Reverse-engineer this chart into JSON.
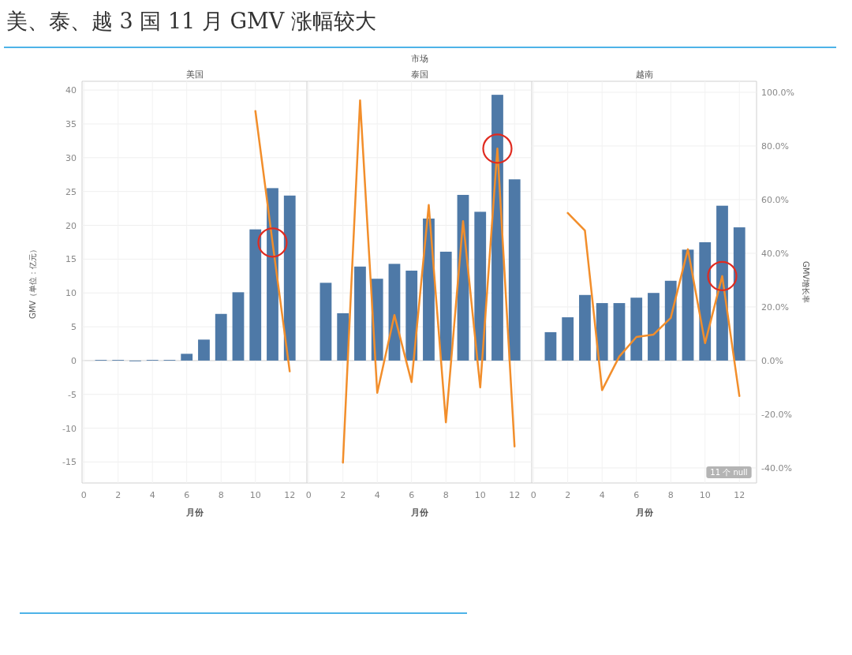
{
  "chart_data": [
    {
      "type": "bar",
      "title": "美国",
      "xlabel": "月份",
      "ylabel": "GMV（单位：亿元）",
      "annotations": [
        "美、泰、越 3 国 11 月 GMV 涨幅较大"
      ],
      "x": [
        1,
        2,
        3,
        4,
        5,
        6,
        7,
        8,
        9,
        10,
        11,
        12
      ],
      "xlim": [
        -0.1,
        13
      ],
      "xticks": [
        0,
        2,
        4,
        6,
        8,
        10,
        12
      ],
      "ylim": [
        -18.1,
        41.3
      ],
      "yticks": [
        -15,
        -10,
        -5,
        0,
        5,
        10,
        15,
        20,
        25,
        30,
        35,
        40
      ],
      "y2lim": [
        -45.6,
        104.1
      ],
      "grid": true,
      "series": [
        {
          "color": "#4e79a7",
          "values": [
            0.1,
            0.1,
            -0.1,
            0.1,
            0.1,
            1.0,
            3.1,
            6.9,
            10.1,
            19.4,
            25.5,
            24.4
          ]
        },
        {
          "type": "line",
          "axis": "y2",
          "color": "#f28e2b",
          "values": [
            null,
            null,
            null,
            null,
            null,
            null,
            null,
            null,
            null,
            93,
            44,
            -4
          ]
        }
      ]
    },
    {
      "type": "bar",
      "title": "泰国",
      "xlabel": "月份",
      "annotations": [
        "市场"
      ],
      "tick_labels": "x",
      "x": [
        1,
        2,
        3,
        4,
        5,
        6,
        7,
        8,
        9,
        10,
        11,
        12
      ],
      "xlim": [
        -0.1,
        13
      ],
      "xticks": [
        0,
        2,
        4,
        6,
        8,
        10,
        12
      ],
      "ylim": [
        -18.1,
        41.3
      ],
      "yticks": [
        {
          "value": -15,
          "label": null
        },
        {
          "value": -10,
          "label": null
        },
        {
          "value": -5,
          "label": null
        },
        {
          "value": 0,
          "label": null
        },
        {
          "value": 5,
          "label": null
        },
        {
          "value": 10,
          "label": null
        },
        {
          "value": 15,
          "label": null
        },
        {
          "value": 20,
          "label": null
        },
        {
          "value": 25,
          "label": null
        },
        {
          "value": 30,
          "label": null
        },
        {
          "value": 35,
          "label": null
        },
        {
          "value": 40,
          "label": null
        }
      ],
      "y2lim": [
        -45.6,
        104.1
      ],
      "grid": true,
      "series": [
        {
          "color": "#4e79a7",
          "values": [
            11.5,
            7.0,
            13.9,
            12.1,
            14.3,
            13.3,
            21.0,
            16.1,
            24.5,
            22.0,
            39.3,
            26.8
          ]
        },
        {
          "type": "line",
          "axis": "y2",
          "color": "#f28e2b",
          "values": [
            null,
            -38,
            97,
            -12,
            17,
            -8,
            58,
            -23,
            52,
            -10,
            79,
            -32
          ]
        }
      ]
    },
    {
      "type": "bar",
      "title": "越南",
      "xlabel": "月份",
      "y2label": "GMV增长率",
      "annotations": [
        "11 个 null"
      ],
      "x": [
        1,
        2,
        3,
        4,
        5,
        6,
        7,
        8,
        9,
        10,
        11,
        12
      ],
      "xlim": [
        -0.1,
        13
      ],
      "xticks": [
        0,
        2,
        4,
        6,
        8,
        10,
        12
      ],
      "ylim": [
        -18.1,
        41.3
      ],
      "y2lim": [
        -45.6,
        104.1
      ],
      "y2ticks": [
        {
          "value": -40,
          "label": "-40.0%"
        },
        {
          "value": -20,
          "label": "-20.0%"
        },
        {
          "value": 0,
          "label": "0.0%"
        },
        {
          "value": 20,
          "label": "20.0%"
        },
        {
          "value": 40,
          "label": "40.0%"
        },
        {
          "value": 60,
          "label": "60.0%"
        },
        {
          "value": 80,
          "label": "80.0%"
        },
        {
          "value": 100,
          "label": "100.0%"
        }
      ],
      "grid": true,
      "series": [
        {
          "color": "#4e79a7",
          "values": [
            4.2,
            6.4,
            9.7,
            8.5,
            8.5,
            9.3,
            10.0,
            11.8,
            16.4,
            17.5,
            22.9,
            19.7
          ]
        },
        {
          "type": "line",
          "axis": "y2",
          "color": "#f28e2b",
          "values": [
            null,
            55,
            48.5,
            -11,
            1.5,
            8.8,
            9.7,
            15.9,
            41.5,
            6.5,
            31.5,
            -13.2
          ]
        }
      ]
    }
  ]
}
